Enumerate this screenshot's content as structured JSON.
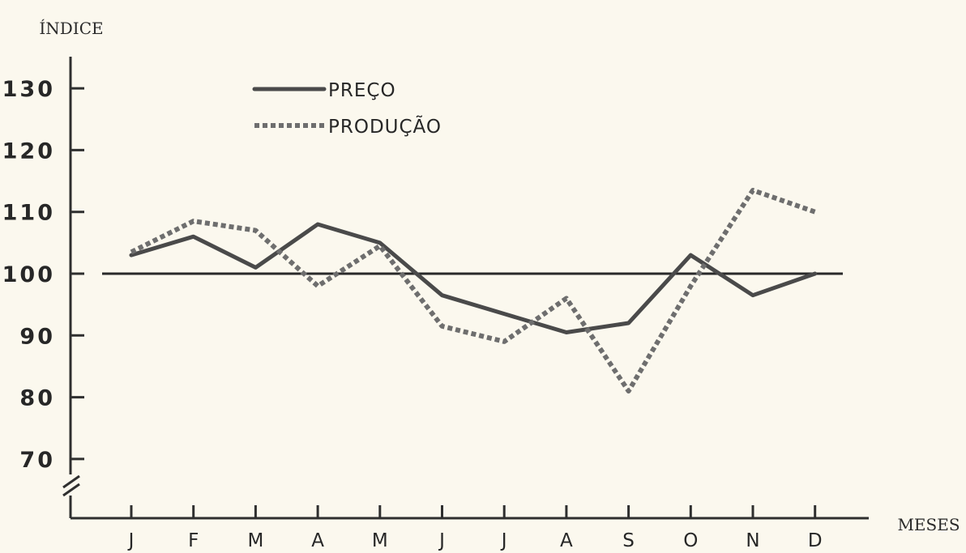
{
  "chart_data": {
    "type": "line",
    "ylabel": "ÍNDICE",
    "xlabel": "MESES",
    "categories": [
      "J",
      "F",
      "M",
      "A",
      "M",
      "J",
      "J",
      "A",
      "S",
      "O",
      "N",
      "D"
    ],
    "y_ticks": [
      "130",
      "120",
      "110",
      "100",
      "90",
      "80",
      "70"
    ],
    "ylim": [
      65,
      135
    ],
    "axis_break": true,
    "reference_line": 100,
    "grid": false,
    "legend_position": "top-left",
    "series": [
      {
        "name": "PREÇO",
        "style": "solid",
        "color": "#4a4a4a",
        "values": [
          103,
          106,
          101,
          108,
          105,
          96.5,
          93.5,
          90.5,
          92,
          103,
          96.5,
          100
        ]
      },
      {
        "name": "PRODUÇÃO",
        "style": "dashed",
        "color": "#6e6e6e",
        "values": [
          103.5,
          108.5,
          107,
          98,
          104.5,
          91.5,
          89,
          96,
          81,
          98,
          113.5,
          110
        ]
      }
    ]
  }
}
